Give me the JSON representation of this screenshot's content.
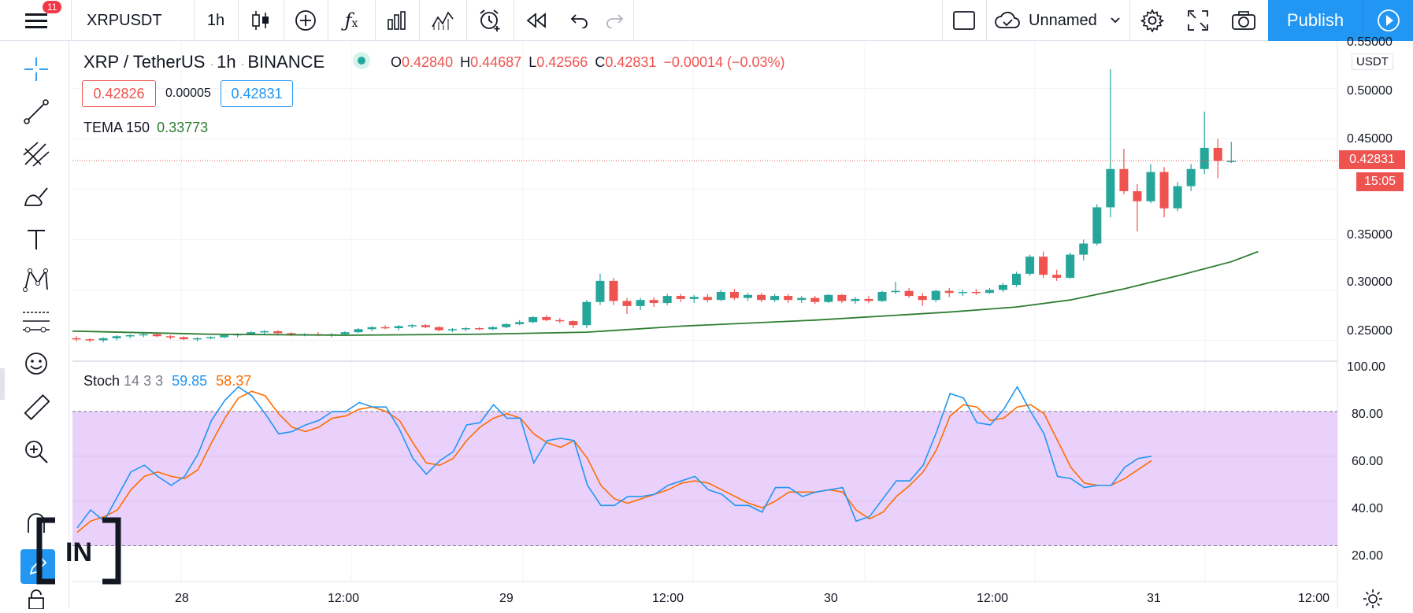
{
  "toolbar": {
    "notification_count": "11",
    "symbol": "XRPUSDT",
    "interval": "1h",
    "layout_name": "Unnamed",
    "publish_label": "Publish"
  },
  "legend": {
    "pair": "XRP / TetherUS",
    "interval": "1h",
    "exchange": "BINANCE",
    "open_label": "O",
    "open": "0.42840",
    "high_label": "H",
    "high": "0.44687",
    "low_label": "L",
    "low": "0.42566",
    "close_label": "C",
    "close": "0.42831",
    "change": "−0.00014 (−0.03%)",
    "bid": "0.42826",
    "spread": "0.00005",
    "ask": "0.42831",
    "tema_label": "TEMA 150",
    "tema_value": "0.33773",
    "stoch_label": "Stoch",
    "stoch_params": "14 3 3",
    "stoch_k": "59.85",
    "stoch_d": "58.37"
  },
  "price_axis": {
    "currency": "USDT",
    "ticks": [
      "0.55000",
      "0.50000",
      "0.45000",
      "0.35000",
      "0.30000",
      "0.25000"
    ],
    "last_price": "0.42831",
    "countdown": "15:05",
    "partial_tick": "0."
  },
  "stoch_axis": {
    "ticks": [
      "100.00",
      "80.00",
      "60.00",
      "40.00",
      "20.00"
    ]
  },
  "time_axis": {
    "ticks": [
      "28",
      "12:00",
      "29",
      "12:00",
      "30",
      "12:00",
      "31",
      "12:00"
    ]
  },
  "watermark": {
    "text": "[IN]"
  },
  "colors": {
    "up": "#26a69a",
    "down": "#ef5350",
    "tema": "#2e7d32",
    "stoch_k": "#2196f3",
    "stoch_d": "#ff6d00",
    "stoch_band": "#e9d1fb",
    "accent": "#2196f3"
  },
  "chart_data": [
    {
      "type": "candlestick",
      "title": "XRP / TetherUS · 1h · BINANCE",
      "ylim": [
        0.23,
        0.555
      ],
      "x_ticks": [
        "28",
        "12:00",
        "29",
        "12:00",
        "30",
        "12:00",
        "31",
        "12:00"
      ],
      "candles": [
        [
          0.252,
          0.254,
          0.249,
          0.251
        ],
        [
          0.251,
          0.252,
          0.248,
          0.25
        ],
        [
          0.25,
          0.253,
          0.248,
          0.252
        ],
        [
          0.252,
          0.255,
          0.25,
          0.254
        ],
        [
          0.254,
          0.256,
          0.252,
          0.255
        ],
        [
          0.255,
          0.257,
          0.253,
          0.256
        ],
        [
          0.256,
          0.257,
          0.253,
          0.254
        ],
        [
          0.254,
          0.255,
          0.251,
          0.253
        ],
        [
          0.253,
          0.254,
          0.25,
          0.251
        ],
        [
          0.251,
          0.253,
          0.249,
          0.252
        ],
        [
          0.252,
          0.254,
          0.251,
          0.253
        ],
        [
          0.253,
          0.256,
          0.252,
          0.255
        ],
        [
          0.255,
          0.257,
          0.253,
          0.256
        ],
        [
          0.256,
          0.259,
          0.255,
          0.258
        ],
        [
          0.258,
          0.26,
          0.256,
          0.259
        ],
        [
          0.259,
          0.26,
          0.256,
          0.257
        ],
        [
          0.257,
          0.258,
          0.254,
          0.255
        ],
        [
          0.255,
          0.257,
          0.254,
          0.256
        ],
        [
          0.256,
          0.258,
          0.254,
          0.255
        ],
        [
          0.255,
          0.257,
          0.253,
          0.256
        ],
        [
          0.256,
          0.259,
          0.255,
          0.258
        ],
        [
          0.258,
          0.262,
          0.257,
          0.261
        ],
        [
          0.261,
          0.264,
          0.259,
          0.263
        ],
        [
          0.263,
          0.265,
          0.261,
          0.262
        ],
        [
          0.262,
          0.265,
          0.26,
          0.264
        ],
        [
          0.264,
          0.266,
          0.262,
          0.265
        ],
        [
          0.265,
          0.266,
          0.262,
          0.263
        ],
        [
          0.263,
          0.264,
          0.259,
          0.26
        ],
        [
          0.26,
          0.262,
          0.258,
          0.261
        ],
        [
          0.261,
          0.263,
          0.259,
          0.262
        ],
        [
          0.262,
          0.263,
          0.26,
          0.261
        ],
        [
          0.261,
          0.264,
          0.26,
          0.263
        ],
        [
          0.263,
          0.267,
          0.262,
          0.266
        ],
        [
          0.266,
          0.27,
          0.265,
          0.268
        ],
        [
          0.268,
          0.274,
          0.267,
          0.273
        ],
        [
          0.273,
          0.275,
          0.269,
          0.27
        ],
        [
          0.27,
          0.272,
          0.267,
          0.269
        ],
        [
          0.269,
          0.27,
          0.262,
          0.265
        ],
        [
          0.265,
          0.29,
          0.262,
          0.288
        ],
        [
          0.288,
          0.316,
          0.285,
          0.309
        ],
        [
          0.309,
          0.312,
          0.285,
          0.289
        ],
        [
          0.289,
          0.292,
          0.276,
          0.284
        ],
        [
          0.284,
          0.292,
          0.28,
          0.29
        ],
        [
          0.29,
          0.293,
          0.283,
          0.287
        ],
        [
          0.287,
          0.296,
          0.285,
          0.294
        ],
        [
          0.294,
          0.296,
          0.288,
          0.291
        ],
        [
          0.291,
          0.295,
          0.287,
          0.293
        ],
        [
          0.293,
          0.296,
          0.288,
          0.29
        ],
        [
          0.29,
          0.3,
          0.289,
          0.298
        ],
        [
          0.298,
          0.301,
          0.29,
          0.292
        ],
        [
          0.292,
          0.297,
          0.289,
          0.295
        ],
        [
          0.295,
          0.297,
          0.288,
          0.29
        ],
        [
          0.29,
          0.296,
          0.288,
          0.294
        ],
        [
          0.294,
          0.296,
          0.287,
          0.29
        ],
        [
          0.29,
          0.294,
          0.287,
          0.292
        ],
        [
          0.292,
          0.294,
          0.286,
          0.288
        ],
        [
          0.288,
          0.296,
          0.287,
          0.295
        ],
        [
          0.295,
          0.296,
          0.287,
          0.289
        ],
        [
          0.289,
          0.293,
          0.286,
          0.291
        ],
        [
          0.291,
          0.294,
          0.287,
          0.289
        ],
        [
          0.289,
          0.299,
          0.288,
          0.298
        ],
        [
          0.298,
          0.308,
          0.296,
          0.299
        ],
        [
          0.299,
          0.302,
          0.292,
          0.294
        ],
        [
          0.294,
          0.297,
          0.284,
          0.29
        ],
        [
          0.29,
          0.3,
          0.288,
          0.299
        ],
        [
          0.299,
          0.302,
          0.293,
          0.297
        ],
        [
          0.297,
          0.3,
          0.294,
          0.298
        ],
        [
          0.298,
          0.301,
          0.295,
          0.297
        ],
        [
          0.297,
          0.302,
          0.296,
          0.3
        ],
        [
          0.3,
          0.307,
          0.298,
          0.305
        ],
        [
          0.305,
          0.318,
          0.303,
          0.316
        ],
        [
          0.316,
          0.335,
          0.314,
          0.333
        ],
        [
          0.333,
          0.338,
          0.312,
          0.315
        ],
        [
          0.315,
          0.32,
          0.309,
          0.312
        ],
        [
          0.312,
          0.337,
          0.311,
          0.335
        ],
        [
          0.335,
          0.35,
          0.329,
          0.346
        ],
        [
          0.346,
          0.385,
          0.344,
          0.382
        ],
        [
          0.382,
          0.519,
          0.372,
          0.42
        ],
        [
          0.42,
          0.44,
          0.395,
          0.398
        ],
        [
          0.398,
          0.405,
          0.358,
          0.388
        ],
        [
          0.388,
          0.425,
          0.386,
          0.417
        ],
        [
          0.417,
          0.422,
          0.372,
          0.381
        ],
        [
          0.381,
          0.407,
          0.378,
          0.403
        ],
        [
          0.403,
          0.425,
          0.398,
          0.42
        ],
        [
          0.42,
          0.477,
          0.415,
          0.441
        ],
        [
          0.441,
          0.45,
          0.411,
          0.428
        ],
        [
          0.428,
          0.447,
          0.426,
          0.428
        ]
      ],
      "tema": {
        "name": "TEMA 150",
        "points": [
          [
            0,
            0.259
          ],
          [
            10,
            0.256
          ],
          [
            20,
            0.255
          ],
          [
            30,
            0.256
          ],
          [
            38,
            0.258
          ],
          [
            45,
            0.264
          ],
          [
            55,
            0.27
          ],
          [
            65,
            0.278
          ],
          [
            70,
            0.283
          ],
          [
            74,
            0.29
          ],
          [
            78,
            0.301
          ],
          [
            82,
            0.314
          ],
          [
            86,
            0.328
          ],
          [
            88,
            0.338
          ]
        ]
      }
    },
    {
      "type": "line",
      "title": "Stoch 14 3 3",
      "ylim": [
        10,
        100
      ],
      "band": [
        20,
        80
      ],
      "series": [
        {
          "name": "59.85",
          "values": [
            28,
            36,
            31,
            42,
            53,
            56,
            51,
            47,
            51,
            61,
            76,
            85,
            91,
            87,
            79,
            70,
            71,
            74,
            76,
            80,
            80,
            84,
            82,
            82,
            72,
            59,
            52,
            58,
            62,
            74,
            75,
            83,
            77,
            77,
            57,
            67,
            68,
            67,
            47,
            38,
            38,
            42,
            42,
            43,
            47,
            49,
            51,
            45,
            43,
            38,
            38,
            35,
            46,
            46,
            42,
            44,
            45,
            46,
            31,
            33,
            41,
            49,
            49,
            56,
            71,
            88,
            86,
            75,
            74,
            81,
            91,
            80,
            70,
            51,
            50,
            46,
            47,
            47,
            55,
            59,
            60
          ]
        },
        {
          "name": "58.37",
          "values": [
            26,
            31,
            33,
            36,
            45,
            51,
            53,
            51,
            50,
            54,
            66,
            77,
            86,
            89,
            87,
            79,
            73,
            71,
            73,
            77,
            78,
            81,
            82,
            80,
            76,
            66,
            57,
            56,
            59,
            67,
            73,
            77,
            79,
            77,
            70,
            66,
            64,
            67,
            59,
            47,
            41,
            39,
            41,
            43,
            45,
            48,
            49,
            48,
            45,
            42,
            39,
            37,
            40,
            44,
            44,
            44,
            45,
            44,
            36,
            32,
            35,
            42,
            47,
            53,
            63,
            78,
            83,
            82,
            76,
            77,
            82,
            83,
            79,
            67,
            55,
            48,
            47,
            47,
            50,
            54,
            58
          ]
        }
      ]
    }
  ]
}
